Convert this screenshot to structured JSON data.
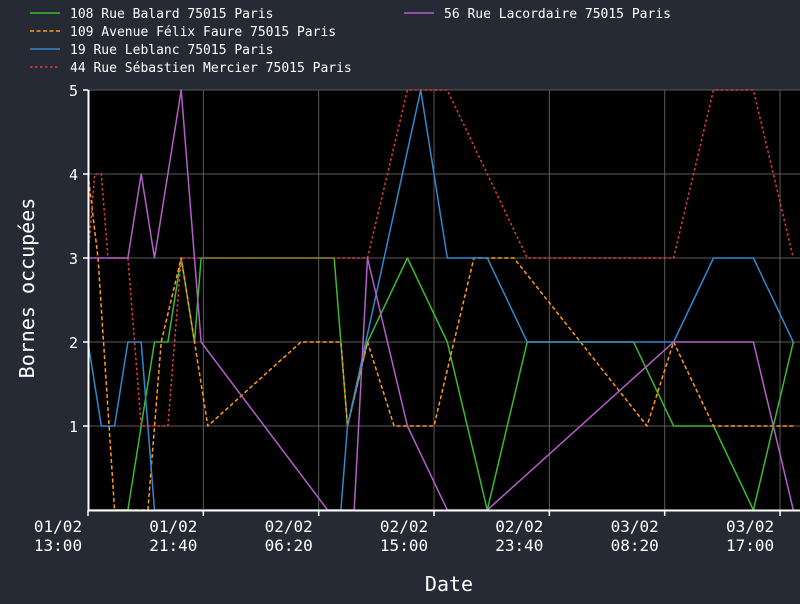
{
  "chart_data": {
    "type": "line",
    "title": "",
    "xlabel": "Date",
    "ylabel": "Bornes occupées",
    "ylim": [
      0,
      5
    ],
    "yticks": [
      1,
      2,
      3,
      4,
      5
    ],
    "xlim": [
      "2024-02-01T13:00",
      "2024-02-03T18:30"
    ],
    "xticks": [
      {
        "t": "2024-02-01T13:00",
        "line1": "01/02",
        "line2": "13:00"
      },
      {
        "t": "2024-02-01T21:40",
        "line1": "01/02",
        "line2": "21:40"
      },
      {
        "t": "2024-02-02T06:20",
        "line1": "02/02",
        "line2": "06:20"
      },
      {
        "t": "2024-02-02T15:00",
        "line1": "02/02",
        "line2": "15:00"
      },
      {
        "t": "2024-02-02T23:40",
        "line1": "02/02",
        "line2": "23:40"
      },
      {
        "t": "2024-02-03T08:20",
        "line1": "03/02",
        "line2": "08:20"
      },
      {
        "t": "2024-02-03T17:00",
        "line1": "03/02",
        "line2": "17:00"
      }
    ],
    "grid": true,
    "legend_position": "top",
    "series": [
      {
        "name": "108 Rue Balard 75015 Paris",
        "color": "#3bba31",
        "dash": "solid",
        "points": [
          [
            "2024-02-01T13:00",
            0
          ],
          [
            "2024-02-01T16:00",
            0
          ],
          [
            "2024-02-01T18:00",
            2
          ],
          [
            "2024-02-01T19:00",
            2
          ],
          [
            "2024-02-01T20:00",
            3
          ],
          [
            "2024-02-01T21:00",
            2
          ],
          [
            "2024-02-01T21:30",
            3
          ],
          [
            "2024-02-02T07:30",
            3
          ],
          [
            "2024-02-02T08:30",
            1
          ],
          [
            "2024-02-02T10:00",
            2
          ],
          [
            "2024-02-02T13:00",
            3
          ],
          [
            "2024-02-02T16:00",
            2
          ],
          [
            "2024-02-02T19:00",
            0
          ],
          [
            "2024-02-02T22:00",
            2
          ],
          [
            "2024-02-03T06:00",
            2
          ],
          [
            "2024-02-03T09:00",
            1
          ],
          [
            "2024-02-03T12:00",
            1
          ],
          [
            "2024-02-03T15:00",
            0
          ],
          [
            "2024-02-03T18:00",
            2
          ]
        ]
      },
      {
        "name": "109 Avenue Félix Faure 75015 Paris",
        "color": "#ff9a1d",
        "dash": "dashed",
        "points": [
          [
            "2024-02-01T13:00",
            4
          ],
          [
            "2024-02-01T13:45",
            3
          ],
          [
            "2024-02-01T15:00",
            0
          ],
          [
            "2024-02-01T17:30",
            0
          ],
          [
            "2024-02-01T18:30",
            2
          ],
          [
            "2024-02-01T20:00",
            3
          ],
          [
            "2024-02-01T22:00",
            1
          ],
          [
            "2024-02-02T05:00",
            2
          ],
          [
            "2024-02-02T08:00",
            2
          ],
          [
            "2024-02-02T08:30",
            1
          ],
          [
            "2024-02-02T10:00",
            2
          ],
          [
            "2024-02-02T12:00",
            1
          ],
          [
            "2024-02-02T15:00",
            1
          ],
          [
            "2024-02-02T18:00",
            3
          ],
          [
            "2024-02-02T21:00",
            3
          ],
          [
            "2024-02-03T07:00",
            1
          ],
          [
            "2024-02-03T09:00",
            2
          ],
          [
            "2024-02-03T12:00",
            1
          ],
          [
            "2024-02-03T18:00",
            1
          ]
        ]
      },
      {
        "name": "19 Rue Leblanc 75015 Paris",
        "color": "#3288cb",
        "dash": "solid",
        "points": [
          [
            "2024-02-01T13:00",
            2
          ],
          [
            "2024-02-01T14:00",
            1
          ],
          [
            "2024-02-01T15:00",
            1
          ],
          [
            "2024-02-01T16:00",
            2
          ],
          [
            "2024-02-01T17:00",
            2
          ],
          [
            "2024-02-01T18:00",
            0
          ],
          [
            "2024-02-02T08:00",
            0
          ],
          [
            "2024-02-02T08:30",
            1
          ],
          [
            "2024-02-02T14:00",
            5
          ],
          [
            "2024-02-02T16:00",
            3
          ],
          [
            "2024-02-02T19:00",
            3
          ],
          [
            "2024-02-02T22:00",
            2
          ],
          [
            "2024-02-03T09:00",
            2
          ],
          [
            "2024-02-03T12:00",
            3
          ],
          [
            "2024-02-03T15:00",
            3
          ],
          [
            "2024-02-03T18:00",
            2
          ]
        ]
      },
      {
        "name": "44 Rue Sébastien Mercier 75015 Paris",
        "color": "#e33b3b",
        "dash": "dotted",
        "points": [
          [
            "2024-02-01T13:00",
            3
          ],
          [
            "2024-02-01T13:30",
            4
          ],
          [
            "2024-02-01T14:00",
            4
          ],
          [
            "2024-02-01T14:30",
            3
          ],
          [
            "2024-02-01T16:00",
            3
          ],
          [
            "2024-02-01T17:00",
            1
          ],
          [
            "2024-02-01T19:00",
            1
          ],
          [
            "2024-02-01T20:00",
            3
          ],
          [
            "2024-02-02T09:00",
            3
          ],
          [
            "2024-02-02T10:00",
            3
          ],
          [
            "2024-02-02T13:00",
            5
          ],
          [
            "2024-02-02T16:00",
            5
          ],
          [
            "2024-02-02T19:00",
            4
          ],
          [
            "2024-02-02T22:00",
            3
          ],
          [
            "2024-02-03T09:00",
            3
          ],
          [
            "2024-02-03T12:00",
            5
          ],
          [
            "2024-02-03T15:00",
            5
          ],
          [
            "2024-02-03T18:00",
            3
          ]
        ]
      },
      {
        "name": "56 Rue Lacordaire 75015 Paris",
        "color": "#b45ec9",
        "dash": "solid",
        "points": [
          [
            "2024-02-01T13:00",
            3
          ],
          [
            "2024-02-01T16:00",
            3
          ],
          [
            "2024-02-01T17:00",
            4
          ],
          [
            "2024-02-01T18:00",
            3
          ],
          [
            "2024-02-01T20:00",
            5
          ],
          [
            "2024-02-01T21:30",
            2
          ],
          [
            "2024-02-02T07:00",
            0
          ],
          [
            "2024-02-02T09:00",
            0
          ],
          [
            "2024-02-02T10:00",
            3
          ],
          [
            "2024-02-02T13:00",
            1
          ],
          [
            "2024-02-02T16:00",
            0
          ],
          [
            "2024-02-02T19:00",
            0
          ],
          [
            "2024-02-03T09:00",
            2
          ],
          [
            "2024-02-03T15:00",
            2
          ],
          [
            "2024-02-03T18:00",
            0
          ]
        ]
      }
    ]
  }
}
